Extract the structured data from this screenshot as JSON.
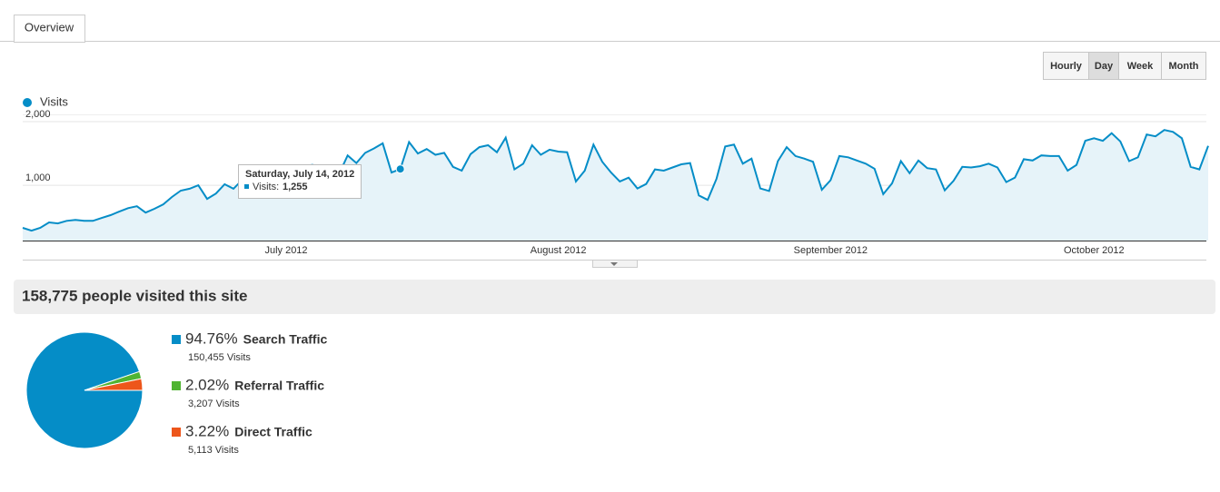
{
  "tabs": [
    "Overview"
  ],
  "buttons": [
    "Hourly",
    "Day",
    "Week",
    "Month"
  ],
  "active_button": 1,
  "tooltip": {
    "date": "Saturday, July 14, 2012",
    "label": "Visits:",
    "value_label": "1,255",
    "index": 43
  },
  "summary": {
    "title": "158,775 people visited this site"
  },
  "chart_data": [
    {
      "type": "line",
      "categories": [
        null,
        null,
        null,
        null,
        null,
        null,
        null,
        null,
        null,
        null,
        null,
        null,
        null,
        null,
        null,
        null,
        null,
        null,
        null,
        null,
        null,
        null,
        null,
        null,
        null,
        null,
        null,
        null,
        null,
        null,
        "July 2012",
        null,
        null,
        null,
        null,
        null,
        null,
        null,
        null,
        null,
        null,
        null,
        null,
        null,
        null,
        null,
        null,
        null,
        null,
        null,
        null,
        null,
        null,
        null,
        null,
        null,
        null,
        null,
        null,
        null,
        null,
        "August 2012",
        null,
        null,
        null,
        null,
        null,
        null,
        null,
        null,
        null,
        null,
        null,
        null,
        null,
        null,
        null,
        null,
        null,
        null,
        null,
        null,
        null,
        null,
        null,
        null,
        null,
        null,
        null,
        null,
        null,
        null,
        "September 2012",
        null,
        null,
        null,
        null,
        null,
        null,
        null,
        null,
        null,
        null,
        null,
        null,
        null,
        null,
        null,
        null,
        null,
        null,
        null,
        null,
        null,
        null,
        null,
        null,
        null,
        null,
        null,
        null,
        null,
        "October 2012",
        null,
        null,
        null,
        null,
        null,
        null,
        null,
        null,
        null,
        null,
        null,
        null,
        null
      ],
      "series": [
        {
          "name": "Visits",
          "color": "#058dc7",
          "values": [
            330,
            285,
            330,
            415,
            400,
            440,
            455,
            440,
            440,
            485,
            530,
            585,
            640,
            670,
            570,
            630,
            700,
            815,
            915,
            945,
            1000,
            785,
            870,
            1015,
            945,
            1085,
            1120,
            1160,
            1190,
            1230,
            1270,
            1260,
            1300,
            1320,
            1280,
            1180,
            1170,
            1470,
            1350,
            1510,
            1580,
            1660,
            1200,
            1255,
            1680,
            1500,
            1570,
            1480,
            1510,
            1290,
            1230,
            1490,
            1600,
            1630,
            1520,
            1750,
            1250,
            1340,
            1630,
            1480,
            1560,
            1530,
            1520,
            1060,
            1230,
            1640,
            1370,
            1200,
            1060,
            1120,
            950,
            1020,
            1250,
            1230,
            1280,
            1330,
            1350,
            840,
            770,
            1100,
            1610,
            1640,
            1340,
            1420,
            950,
            910,
            1380,
            1600,
            1460,
            1420,
            1370,
            930,
            1080,
            1460,
            1440,
            1390,
            1340,
            1260,
            860,
            1030,
            1380,
            1190,
            1390,
            1270,
            1250,
            920,
            1070,
            1290,
            1280,
            1300,
            1340,
            1280,
            1050,
            1120,
            1410,
            1390,
            1470,
            1460,
            1460,
            1230,
            1320,
            1700,
            1740,
            1700,
            1820,
            1690,
            1380,
            1440,
            1800,
            1770,
            1870,
            1840,
            1740,
            1290,
            1250,
            1620
          ]
        }
      ],
      "ylim": [
        130,
        2115
      ],
      "yticks": [
        {
          "value": 1000,
          "label": "1,000"
        },
        {
          "value": 2000,
          "label": "2,000"
        }
      ],
      "grid": true
    },
    {
      "type": "pie",
      "categories": [
        "Search Traffic",
        "Referral Traffic",
        "Direct Traffic"
      ],
      "values": [
        94.76,
        2.02,
        3.22
      ],
      "value_labels": [
        "94.76%",
        "2.02%",
        "3.22%"
      ],
      "visit_labels": [
        "150,455 Visits",
        "3,207 Visits",
        "5,113 Visits"
      ],
      "colors": [
        "#058dc7",
        "#50b432",
        "#ed561b"
      ]
    }
  ]
}
